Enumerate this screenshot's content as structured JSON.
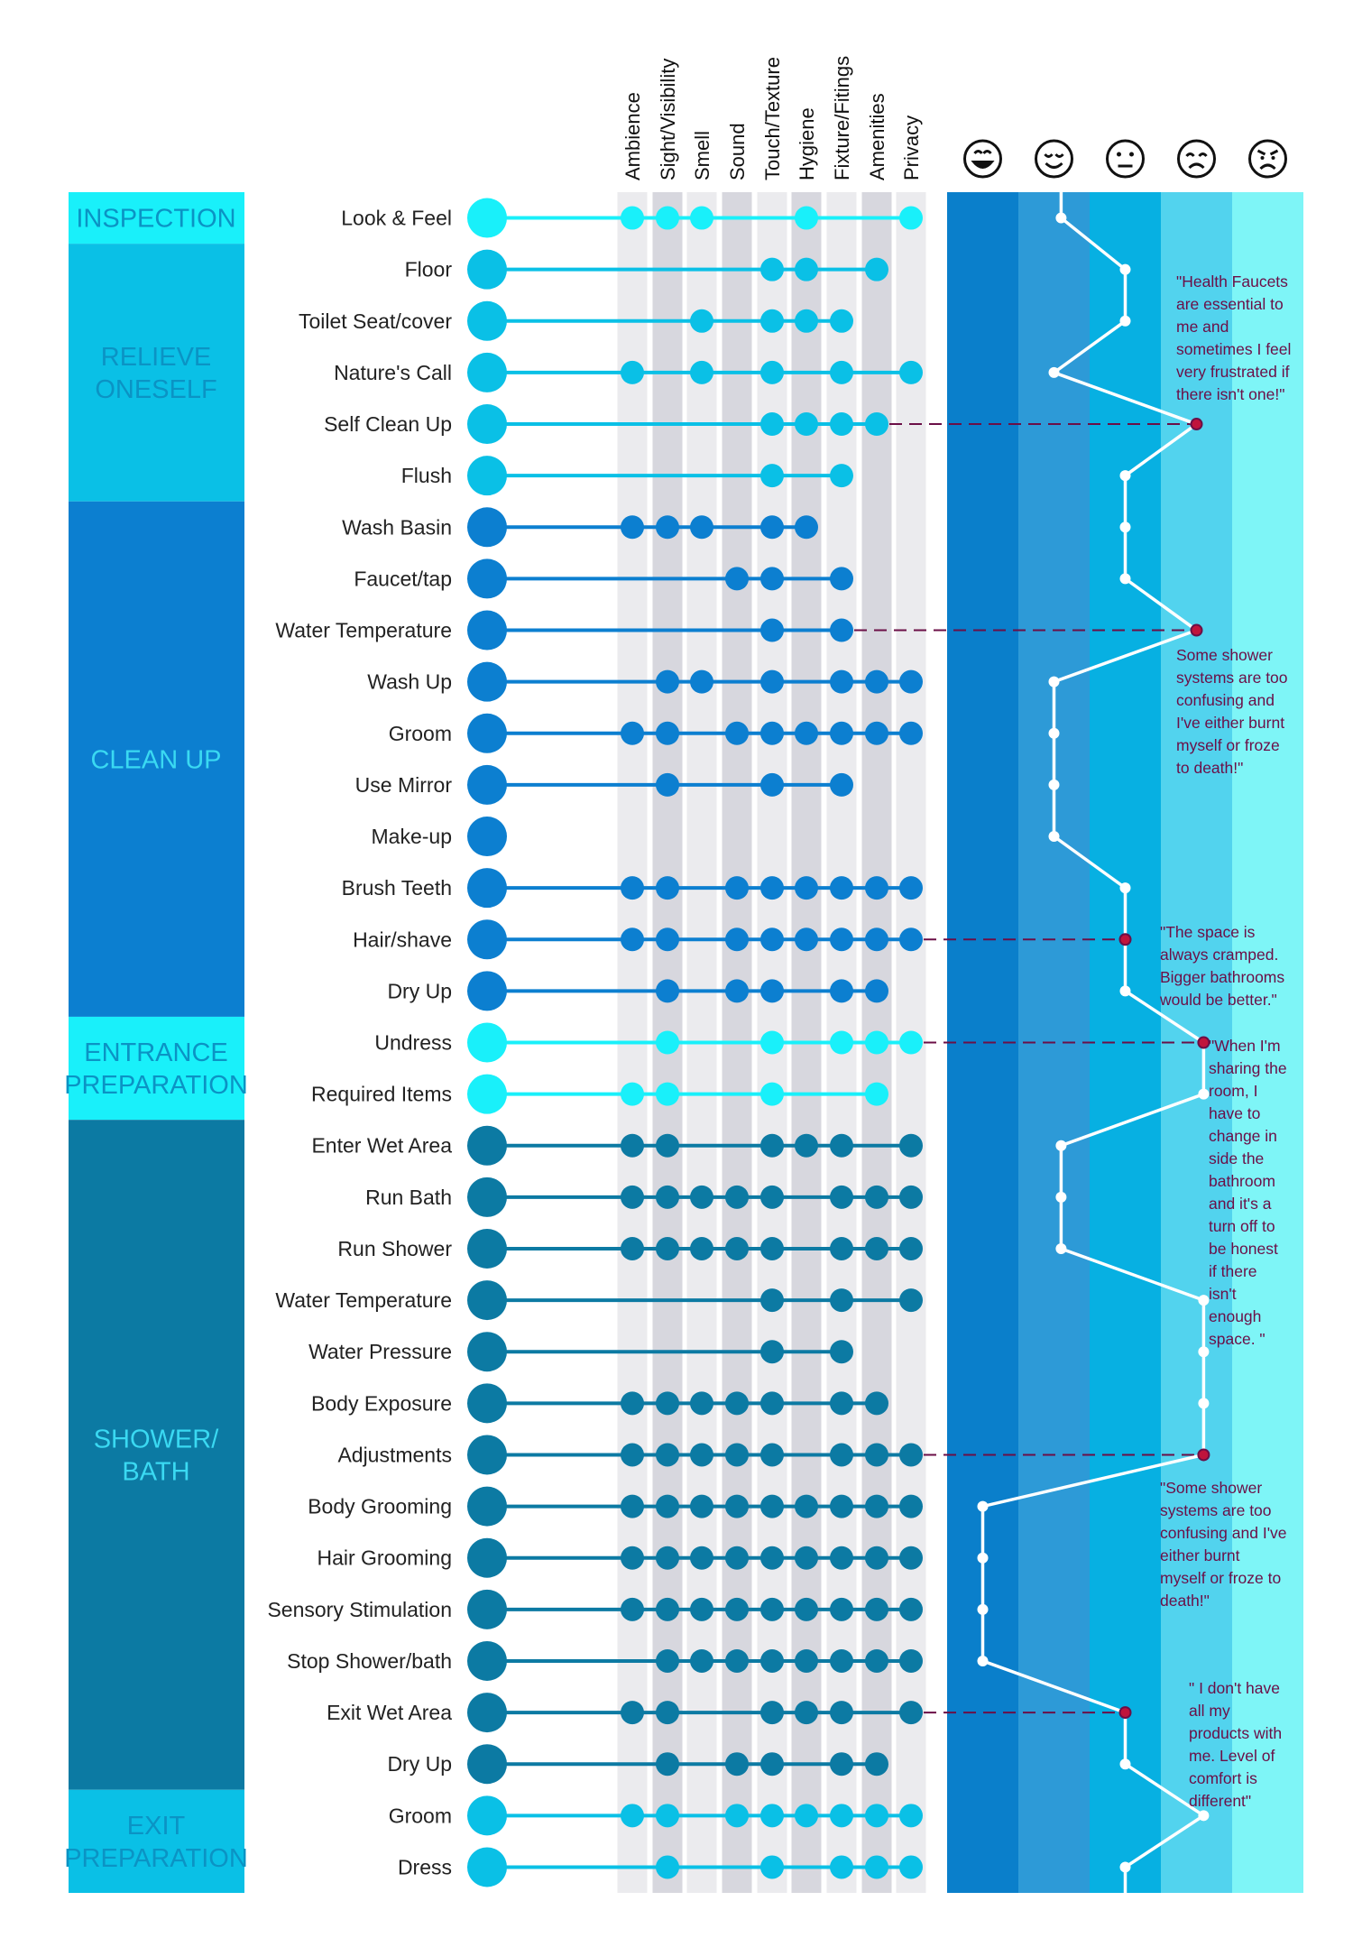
{
  "columns": [
    "Ambience",
    "Sight/Visibility",
    "Smell",
    "Sound",
    "Touch/Texture",
    "Hygiene",
    "Fixture/Fitings",
    "Amenities",
    "Privacy"
  ],
  "emotion_scale": [
    {
      "name": "very-happy-face-icon"
    },
    {
      "name": "happy-face-icon"
    },
    {
      "name": "neutral-face-icon"
    },
    {
      "name": "sad-face-icon"
    },
    {
      "name": "angry-face-icon"
    }
  ],
  "colors": {
    "cyan": "#19f0fa",
    "sky": "#0ac0e6",
    "blue": "#0c7fd0",
    "teal": "#0c7aa3",
    "quote": "#6b0f47",
    "phase_label_light": "#0b93c4",
    "phase_label_dark": "#3ad9f2",
    "emotion_bands": [
      "#0a7fcb",
      "#2d9ad7",
      "#07b0e2",
      "#52d3ee",
      "#7ef5f7"
    ],
    "column_stripes": [
      "#ebebee",
      "#d7d7de"
    ]
  },
  "phases": [
    {
      "label_lines": [
        "INSPECTION"
      ],
      "color": "cyan",
      "rows": 1
    },
    {
      "label_lines": [
        "RELIEVE",
        "ONESELF"
      ],
      "color": "sky",
      "rows": 5
    },
    {
      "label_lines": [
        "CLEAN UP"
      ],
      "color": "blue",
      "rows": 10
    },
    {
      "label_lines": [
        "ENTRANCE",
        "PREPARATION"
      ],
      "color": "cyan",
      "rows": 2
    },
    {
      "label_lines": [
        "SHOWER/",
        "BATH"
      ],
      "color": "teal",
      "rows": 13
    },
    {
      "label_lines": [
        "EXIT",
        "PREPARATION"
      ],
      "color": "sky",
      "rows": 2
    }
  ],
  "activities": [
    {
      "label": "Look & Feel",
      "color": "cyan",
      "dots": [
        1,
        1,
        1,
        0,
        0,
        1,
        0,
        0,
        1
      ],
      "emotion": 2.1
    },
    {
      "label": "Floor",
      "color": "sky",
      "dots": [
        0,
        0,
        0,
        0,
        1,
        1,
        0,
        1,
        0
      ],
      "emotion": 3.0
    },
    {
      "label": "Toilet Seat/cover",
      "color": "sky",
      "dots": [
        0,
        0,
        1,
        0,
        1,
        1,
        1,
        0,
        0
      ],
      "emotion": 3.0
    },
    {
      "label": "Nature's Call",
      "color": "sky",
      "dots": [
        1,
        0,
        1,
        0,
        1,
        0,
        1,
        0,
        1
      ],
      "emotion": 2.0
    },
    {
      "label": "Self Clean Up",
      "color": "sky",
      "dots": [
        0,
        0,
        0,
        0,
        1,
        1,
        1,
        1,
        0
      ],
      "emotion": 4.0,
      "quote": [
        "\"Health Faucets",
        "are essential to",
        "me and",
        "sometimes I feel",
        "very frustrated if",
        "there isn't one!\""
      ]
    },
    {
      "label": "Flush",
      "color": "sky",
      "dots": [
        0,
        0,
        0,
        0,
        1,
        0,
        1,
        0,
        0
      ],
      "emotion": 3.0
    },
    {
      "label": "Wash Basin",
      "color": "blue",
      "dots": [
        1,
        1,
        1,
        0,
        1,
        1,
        0,
        0,
        0
      ],
      "emotion": 3.0
    },
    {
      "label": "Faucet/tap",
      "color": "blue",
      "dots": [
        0,
        0,
        0,
        1,
        1,
        0,
        1,
        0,
        0
      ],
      "emotion": 3.0
    },
    {
      "label": "Water Temperature",
      "color": "blue",
      "dots": [
        0,
        0,
        0,
        0,
        1,
        0,
        1,
        0,
        0
      ],
      "emotion": 4.0,
      "quote": [
        "Some shower",
        "systems are too",
        "confusing and",
        "I've either burnt",
        "myself or froze",
        "to death!\""
      ]
    },
    {
      "label": "Wash Up",
      "color": "blue",
      "dots": [
        0,
        1,
        1,
        0,
        1,
        0,
        1,
        1,
        1
      ],
      "emotion": 2.0
    },
    {
      "label": "Groom",
      "color": "blue",
      "dots": [
        1,
        1,
        0,
        1,
        1,
        1,
        1,
        1,
        1
      ],
      "emotion": 2.0
    },
    {
      "label": "Use Mirror",
      "color": "blue",
      "dots": [
        0,
        1,
        0,
        0,
        1,
        0,
        1,
        0,
        0
      ],
      "emotion": 2.0
    },
    {
      "label": "Make-up",
      "color": "blue",
      "dots": [
        0,
        0,
        0,
        0,
        0,
        0,
        0,
        0,
        0
      ],
      "emotion": 2.0
    },
    {
      "label": "Brush Teeth",
      "color": "blue",
      "dots": [
        1,
        1,
        0,
        1,
        1,
        1,
        1,
        1,
        1
      ],
      "emotion": 3.0
    },
    {
      "label": "Hair/shave",
      "color": "blue",
      "dots": [
        1,
        1,
        0,
        1,
        1,
        1,
        1,
        1,
        1
      ],
      "emotion": 3.0,
      "quote": [
        "\"The space is",
        "always cramped.",
        "Bigger bathrooms",
        "would be better.\""
      ]
    },
    {
      "label": "Dry Up",
      "color": "blue",
      "dots": [
        0,
        1,
        0,
        1,
        1,
        0,
        1,
        1,
        0
      ],
      "emotion": 3.0
    },
    {
      "label": "Undress",
      "color": "cyan",
      "dots": [
        0,
        1,
        0,
        0,
        1,
        0,
        1,
        1,
        1
      ],
      "emotion": 4.1,
      "quote": [
        "\"When I'm",
        "sharing the",
        "room, I",
        "have to",
        "change in",
        "side the",
        "bathroom",
        "and it's a",
        "turn off to",
        "be honest",
        "if there",
        "isn't",
        "enough",
        "space. \""
      ]
    },
    {
      "label": "Required Items",
      "color": "cyan",
      "dots": [
        1,
        1,
        0,
        0,
        1,
        0,
        0,
        1,
        0
      ],
      "emotion": 4.1
    },
    {
      "label": "Enter Wet Area",
      "color": "teal",
      "dots": [
        1,
        1,
        0,
        0,
        1,
        1,
        1,
        0,
        1
      ],
      "emotion": 2.1
    },
    {
      "label": "Run Bath",
      "color": "teal",
      "dots": [
        1,
        1,
        1,
        1,
        1,
        0,
        1,
        1,
        1
      ],
      "emotion": 2.1
    },
    {
      "label": "Run Shower",
      "color": "teal",
      "dots": [
        1,
        1,
        1,
        1,
        1,
        0,
        1,
        1,
        1
      ],
      "emotion": 2.1
    },
    {
      "label": "Water Temperature",
      "color": "teal",
      "dots": [
        0,
        0,
        0,
        0,
        1,
        0,
        1,
        0,
        1
      ],
      "emotion": 4.1
    },
    {
      "label": "Water Pressure",
      "color": "teal",
      "dots": [
        0,
        0,
        0,
        0,
        1,
        0,
        1,
        0,
        0
      ],
      "emotion": 4.1
    },
    {
      "label": "Body Exposure",
      "color": "teal",
      "dots": [
        1,
        1,
        1,
        1,
        1,
        0,
        1,
        1,
        0
      ],
      "emotion": 4.1
    },
    {
      "label": "Adjustments",
      "color": "teal",
      "dots": [
        1,
        1,
        1,
        1,
        1,
        0,
        1,
        1,
        1
      ],
      "emotion": 4.1,
      "quote": [
        "\"Some shower",
        "systems are too",
        "confusing and I've",
        "either burnt",
        "myself or froze to",
        "death!\""
      ]
    },
    {
      "label": "Body Grooming",
      "color": "teal",
      "dots": [
        1,
        1,
        1,
        1,
        1,
        1,
        1,
        1,
        1
      ],
      "emotion": 1.0
    },
    {
      "label": "Hair Grooming",
      "color": "teal",
      "dots": [
        1,
        1,
        1,
        1,
        1,
        1,
        1,
        1,
        1
      ],
      "emotion": 1.0
    },
    {
      "label": "Sensory Stimulation",
      "color": "teal",
      "dots": [
        1,
        1,
        1,
        1,
        1,
        1,
        1,
        1,
        1
      ],
      "emotion": 1.0
    },
    {
      "label": "Stop Shower/bath",
      "color": "teal",
      "dots": [
        0,
        1,
        1,
        1,
        1,
        1,
        1,
        1,
        1
      ],
      "emotion": 1.0
    },
    {
      "label": "Exit Wet Area",
      "color": "teal",
      "dots": [
        1,
        1,
        0,
        0,
        1,
        1,
        1,
        0,
        1
      ],
      "emotion": 3.0,
      "quote": [
        "\" I don't have",
        "all my",
        "products with",
        "me. Level of",
        "comfort is",
        "different\""
      ]
    },
    {
      "label": "Dry Up",
      "color": "teal",
      "dots": [
        0,
        1,
        0,
        1,
        1,
        0,
        1,
        1,
        0
      ],
      "emotion": 3.0
    },
    {
      "label": "Groom",
      "color": "sky",
      "dots": [
        1,
        1,
        0,
        1,
        1,
        1,
        1,
        1,
        1
      ],
      "emotion": 4.1
    },
    {
      "label": "Dress",
      "color": "sky",
      "dots": [
        0,
        1,
        0,
        0,
        1,
        0,
        1,
        1,
        1
      ],
      "emotion": 3.0
    }
  ]
}
